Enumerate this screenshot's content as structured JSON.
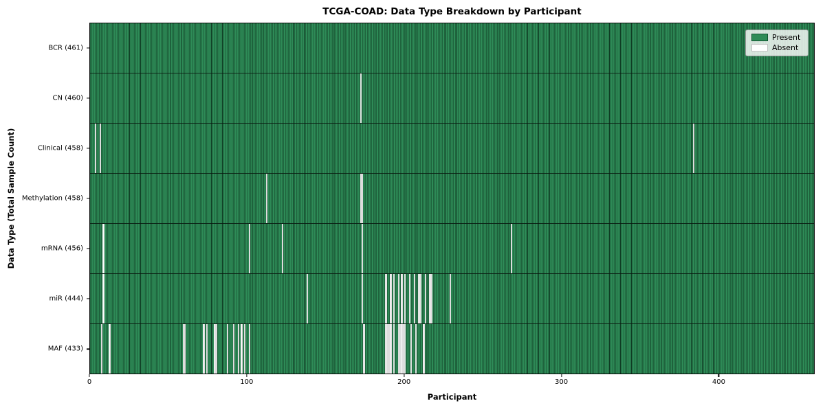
{
  "colors": {
    "present": "#2e8b57",
    "absent": "#ffffff",
    "bar_edge": "#0a2a18",
    "axis": "#000000",
    "legend_border": "#9a9a9a"
  },
  "chart_data": {
    "type": "heatmap",
    "title": "TCGA-COAD: Data Type Breakdown by Participant",
    "xlabel": "Participant",
    "ylabel": "Data Type (Total Sample Count)",
    "xlim": [
      0,
      461
    ],
    "x_ticks": [
      0,
      100,
      200,
      300,
      400
    ],
    "total_participants": 461,
    "grid": false,
    "legend": [
      "Present",
      "Absent"
    ],
    "legend_position": "upper right",
    "rows": [
      {
        "data_type": "BCR",
        "label": "BCR (461)",
        "present_count": 461,
        "absent_participants": []
      },
      {
        "data_type": "CN",
        "label": "CN (460)",
        "present_count": 460,
        "absent_participants": [
          172
        ]
      },
      {
        "data_type": "Clinical",
        "label": "Clinical (458)",
        "present_count": 458,
        "absent_participants": [
          3,
          6,
          384
        ]
      },
      {
        "data_type": "Methylation",
        "label": "Methylation (458)",
        "present_count": 458,
        "absent_participants": [
          112,
          172,
          173
        ]
      },
      {
        "data_type": "mRNA",
        "label": "mRNA (456)",
        "present_count": 456,
        "absent_participants": [
          8,
          101,
          122,
          173,
          268
        ]
      },
      {
        "data_type": "miR",
        "label": "miR (444)",
        "present_count": 444,
        "absent_participants": [
          8,
          138,
          173,
          188,
          191,
          193,
          196,
          198,
          200,
          203,
          206,
          209,
          210,
          213,
          216,
          217,
          229
        ]
      },
      {
        "data_type": "MAF",
        "label": "MAF (433)",
        "present_count": 433,
        "absent_participants": [
          7,
          12,
          59,
          60,
          72,
          74,
          79,
          80,
          87,
          91,
          94,
          96,
          98,
          101,
          174,
          188,
          189,
          190,
          191,
          193,
          196,
          197,
          198,
          199,
          200,
          204,
          207,
          212
        ]
      }
    ]
  }
}
